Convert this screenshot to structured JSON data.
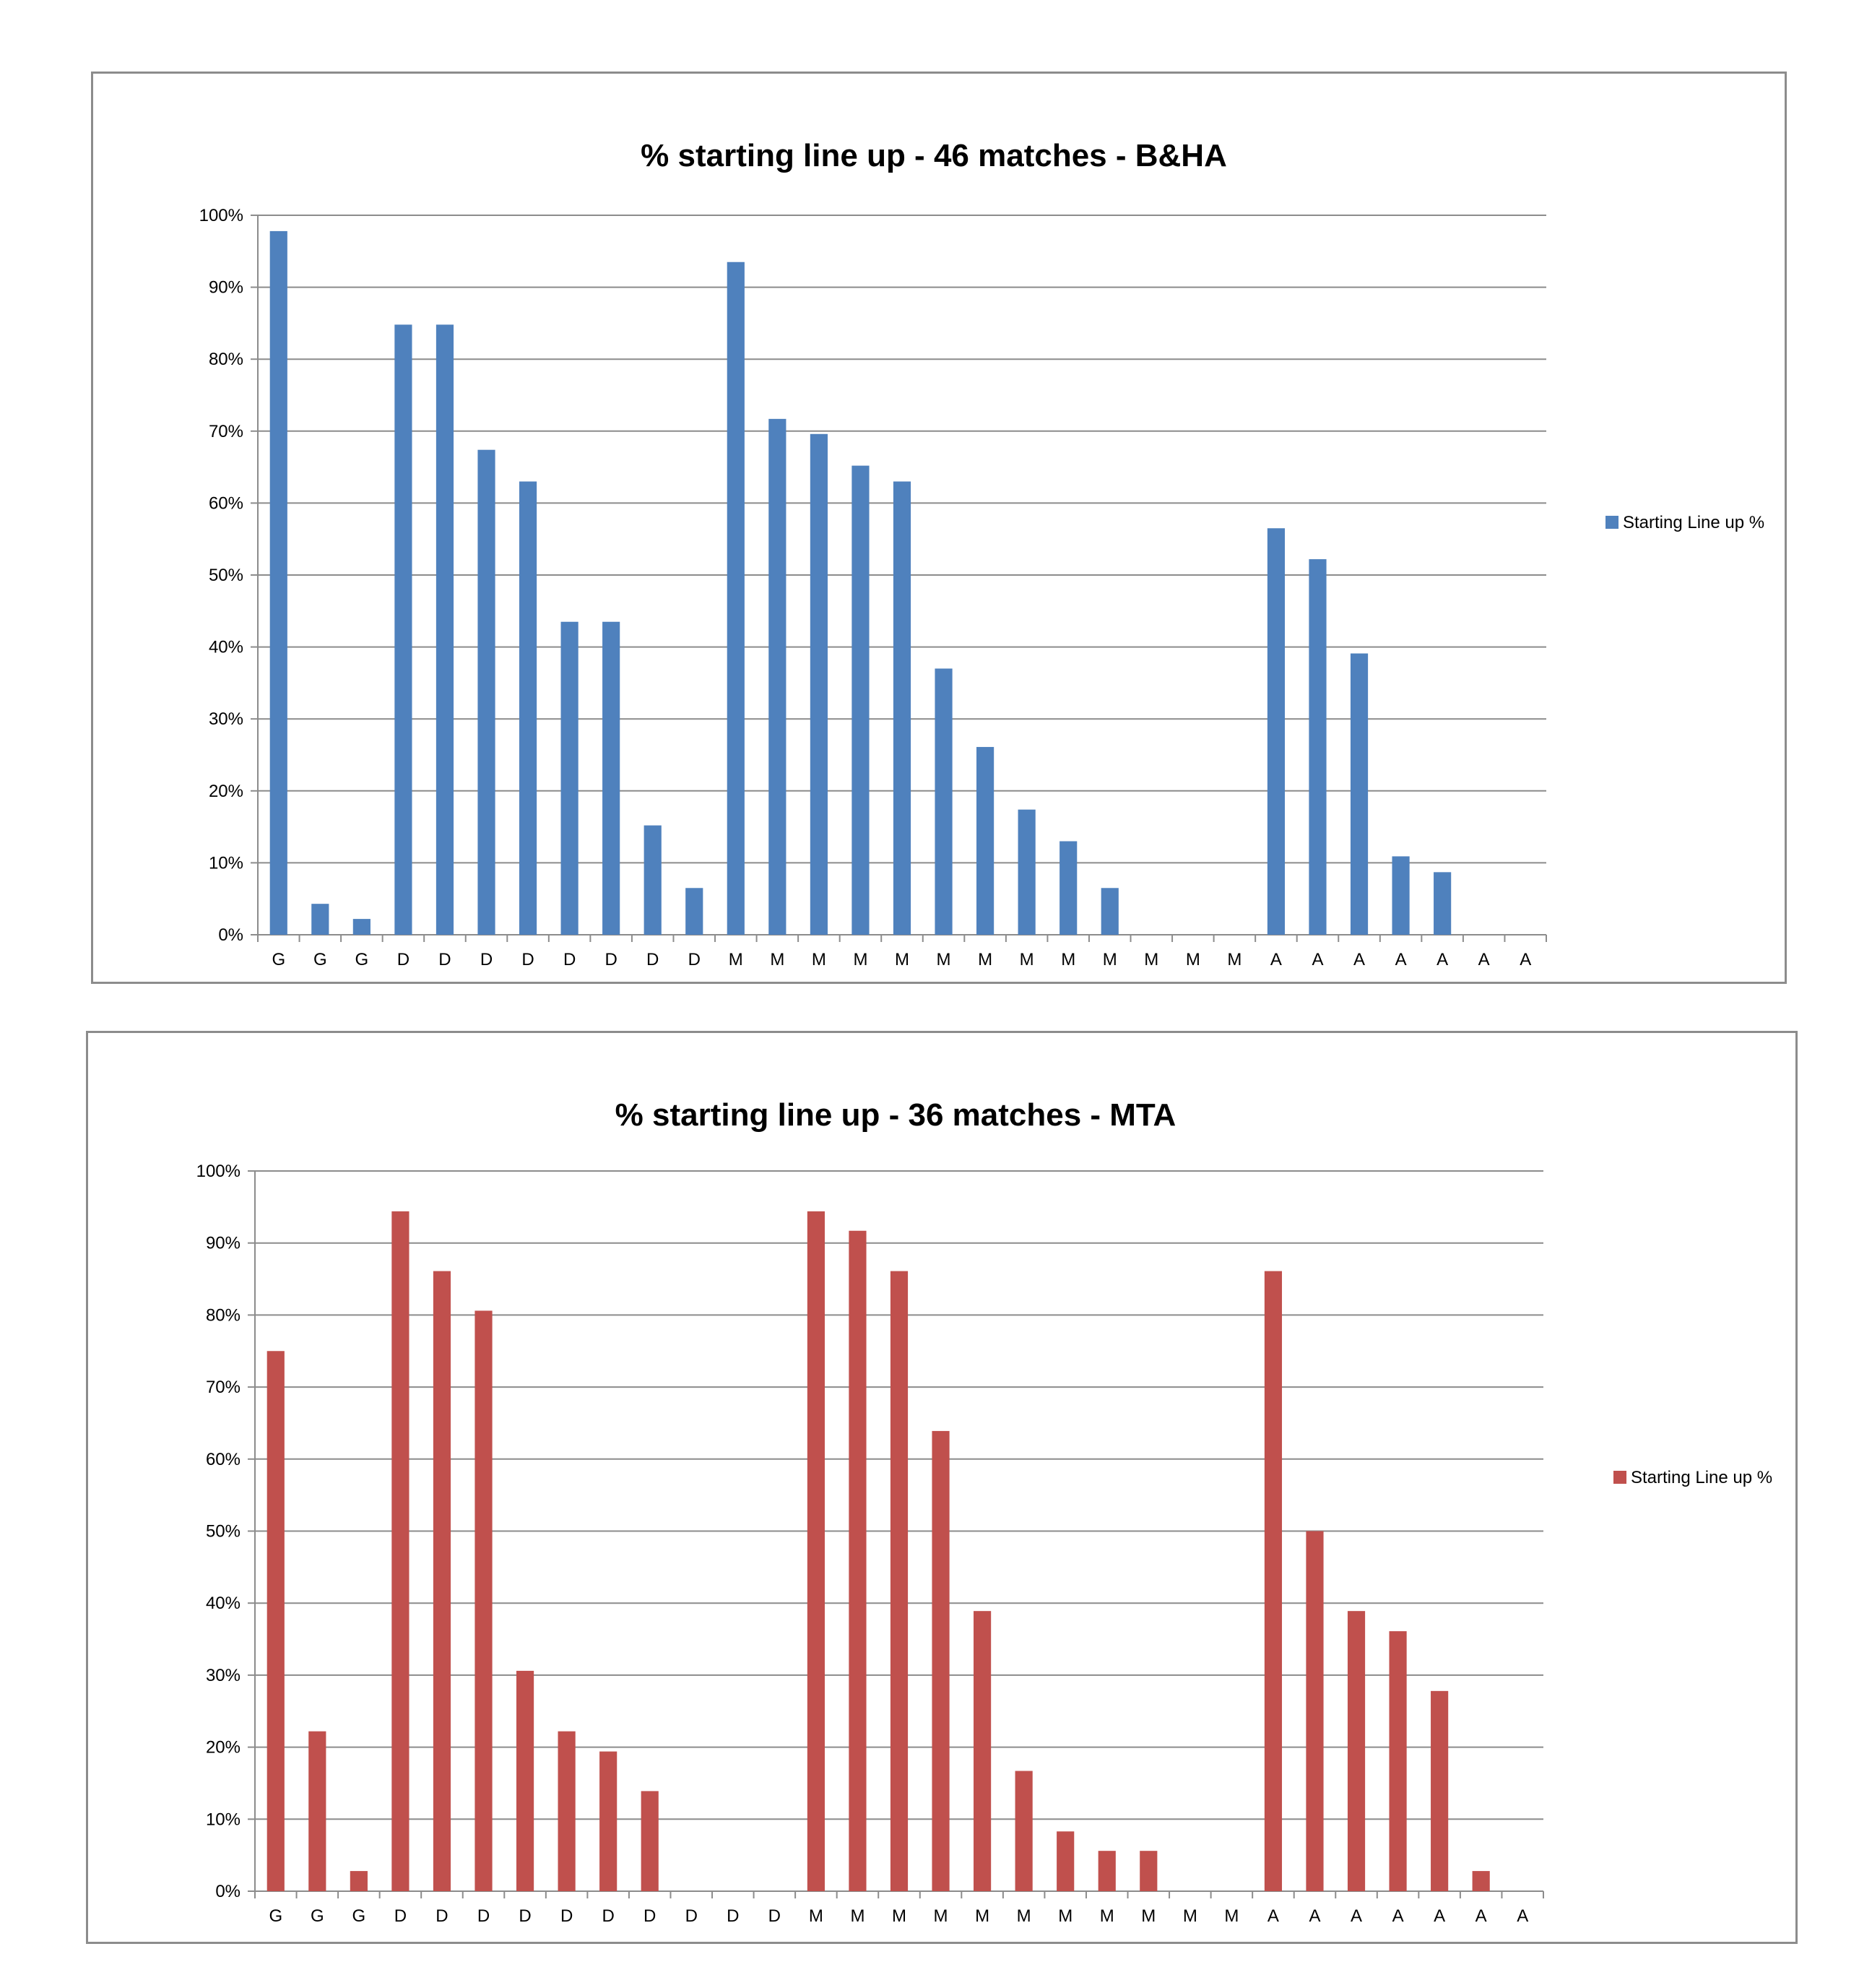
{
  "chart_data": [
    {
      "type": "bar",
      "title": "% starting line up - 46 matches - B&HA",
      "xlabel": "",
      "ylabel": "",
      "ylim": [
        0,
        1
      ],
      "grid": true,
      "legend_position": "right",
      "color": "#4f81bd",
      "y_tick_labels": [
        "0%",
        "10%",
        "20%",
        "30%",
        "40%",
        "50%",
        "60%",
        "70%",
        "80%",
        "90%",
        "100%"
      ],
      "categories": [
        "G",
        "G",
        "G",
        "D",
        "D",
        "D",
        "D",
        "D",
        "D",
        "D",
        "D",
        "M",
        "M",
        "M",
        "M",
        "M",
        "M",
        "M",
        "M",
        "M",
        "M",
        "M",
        "M",
        "M",
        "A",
        "A",
        "A",
        "A",
        "A",
        "A",
        "A"
      ],
      "series": [
        {
          "name": "Starting Line up %",
          "values": [
            0.978,
            0.043,
            0.022,
            0.848,
            0.848,
            0.674,
            0.63,
            0.435,
            0.435,
            0.152,
            0.065,
            0.935,
            0.717,
            0.696,
            0.652,
            0.63,
            0.37,
            0.261,
            0.174,
            0.13,
            0.065,
            0,
            0,
            0,
            0.565,
            0.522,
            0.391,
            0.109,
            0.087,
            0,
            0
          ]
        }
      ]
    },
    {
      "type": "bar",
      "title": "% starting line up - 36 matches - MTA",
      "xlabel": "",
      "ylabel": "",
      "ylim": [
        0,
        1
      ],
      "grid": true,
      "legend_position": "right",
      "color": "#c0504d",
      "y_tick_labels": [
        "0%",
        "10%",
        "20%",
        "30%",
        "40%",
        "50%",
        "60%",
        "70%",
        "80%",
        "90%",
        "100%"
      ],
      "categories": [
        "G",
        "G",
        "G",
        "D",
        "D",
        "D",
        "D",
        "D",
        "D",
        "D",
        "D",
        "D",
        "D",
        "M",
        "M",
        "M",
        "M",
        "M",
        "M",
        "M",
        "M",
        "M",
        "M",
        "M",
        "A",
        "A",
        "A",
        "A",
        "A",
        "A",
        "A"
      ],
      "series": [
        {
          "name": "Starting Line up %",
          "values": [
            0.75,
            0.222,
            0.028,
            0.944,
            0.861,
            0.806,
            0.306,
            0.222,
            0.194,
            0.139,
            0,
            0,
            0,
            0.944,
            0.917,
            0.861,
            0.639,
            0.389,
            0.167,
            0.083,
            0.056,
            0.056,
            0,
            0,
            0.861,
            0.5,
            0.389,
            0.361,
            0.278,
            0.028,
            0
          ]
        }
      ]
    }
  ]
}
